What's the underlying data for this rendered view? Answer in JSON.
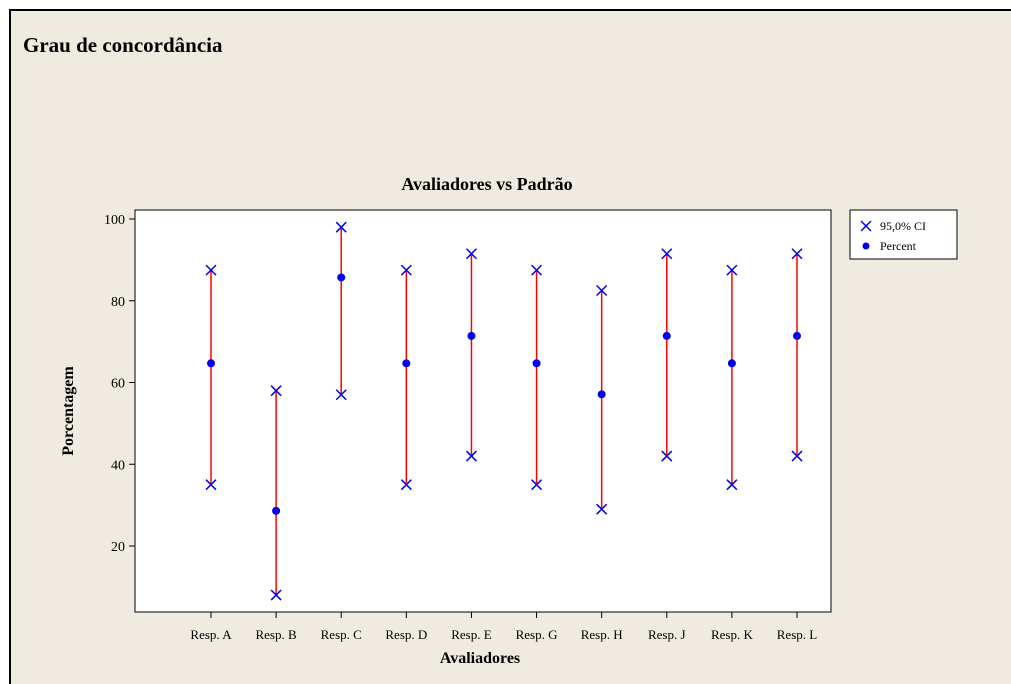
{
  "page_title": "Grau de concordância",
  "colors": {
    "background": "#efebe0",
    "plot_background": "#ffffff",
    "interval_line": "#ff0000",
    "marker": "#0000ee"
  },
  "chart_data": {
    "type": "interval",
    "title": "Avaliadores vs Padrão",
    "xlabel": "Avaliadores",
    "ylabel": "Porcentagem",
    "ylim": [
      5,
      103
    ],
    "yticks": [
      20,
      40,
      60,
      80,
      100
    ],
    "categories": [
      "Resp. A",
      "Resp. B",
      "Resp. C",
      "Resp. D",
      "Resp. E",
      "Resp. G",
      "Resp. H",
      "Resp. J",
      "Resp. K",
      "Resp. L"
    ],
    "series": [
      {
        "name": "Percent",
        "marker": "dot",
        "values": [
          64.7,
          28.6,
          85.7,
          64.7,
          71.4,
          64.7,
          57.1,
          71.4,
          64.7,
          71.4
        ]
      },
      {
        "name": "95,0% CI",
        "marker": "x",
        "lower": [
          35.0,
          8.0,
          57.0,
          35.0,
          42.0,
          35.0,
          29.0,
          42.0,
          35.0,
          42.0
        ],
        "upper": [
          87.5,
          58.0,
          98.0,
          87.5,
          91.5,
          87.5,
          82.5,
          91.5,
          87.5,
          91.5
        ]
      }
    ],
    "legend": {
      "position": "top-right",
      "entries": [
        "95,0% CI",
        "Percent"
      ]
    },
    "grid": false
  }
}
